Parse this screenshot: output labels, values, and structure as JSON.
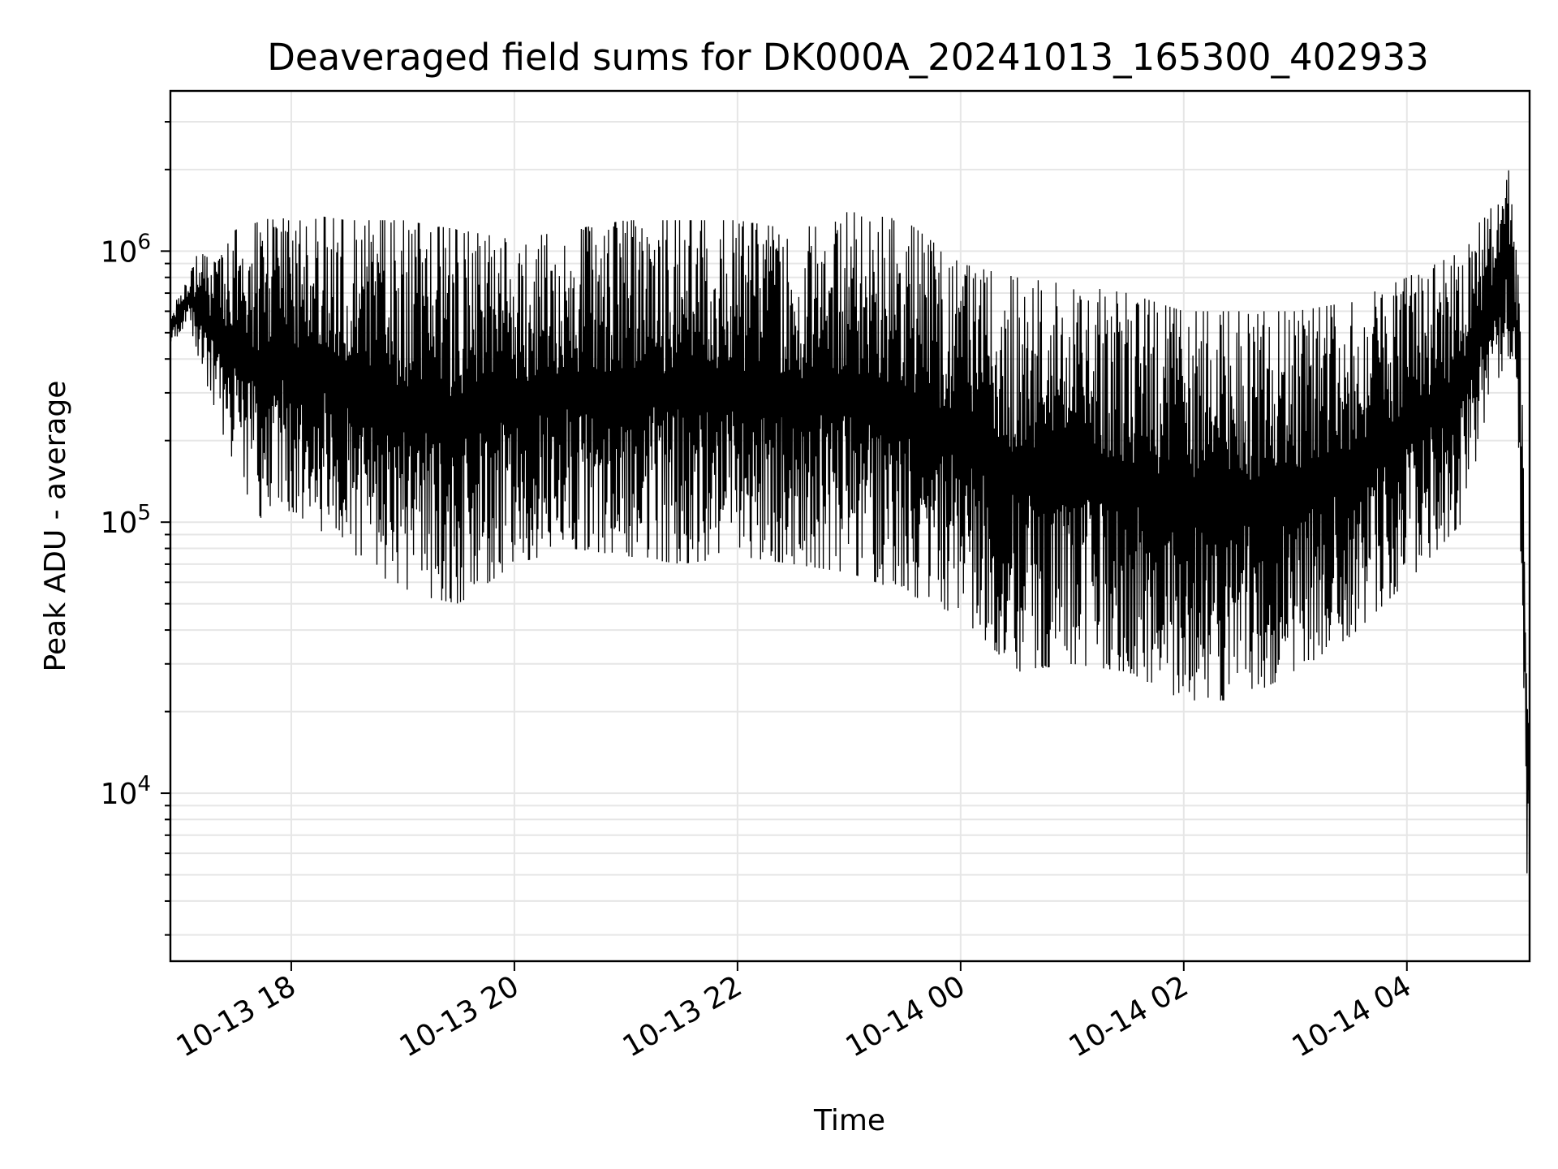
{
  "chart_data": {
    "type": "line",
    "title": "Deaveraged field sums for DK000A_20241013_165300_402933",
    "xlabel": "Time",
    "ylabel": "Peak ADU - average",
    "yscale": "log",
    "grid": true,
    "x_axis_type": "datetime",
    "xlim": [
      "2024-10-13 16:55",
      "2024-10-14 05:06"
    ],
    "ylim": [
      2400,
      3900000
    ],
    "x_ticks": [
      {
        "value": "2024-10-13 18:00",
        "label": "10-13 18"
      },
      {
        "value": "2024-10-13 20:00",
        "label": "10-13 20"
      },
      {
        "value": "2024-10-13 22:00",
        "label": "10-13 22"
      },
      {
        "value": "2024-10-14 00:00",
        "label": "10-14 00"
      },
      {
        "value": "2024-10-14 02:00",
        "label": "10-14 02"
      },
      {
        "value": "2024-10-14 04:00",
        "label": "10-14 04"
      }
    ],
    "y_ticks": [
      {
        "value": 10000,
        "base": "10",
        "exp": "4"
      },
      {
        "value": 100000,
        "base": "10",
        "exp": "5"
      },
      {
        "value": 1000000,
        "base": "10",
        "exp": "6"
      }
    ],
    "line_color": "#000000",
    "series": [
      {
        "x": [
          "2024-10-13 16:55",
          "2024-10-13 17:05",
          "2024-10-13 17:10",
          "2024-10-13 17:20",
          "2024-10-13 17:30",
          "2024-10-13 17:45",
          "2024-10-13 18:00",
          "2024-10-13 18:30",
          "2024-10-13 19:00",
          "2024-10-13 19:30",
          "2024-10-13 20:00",
          "2024-10-13 20:30",
          "2024-10-13 21:00",
          "2024-10-13 21:30",
          "2024-10-13 22:00",
          "2024-10-13 22:30",
          "2024-10-13 23:00",
          "2024-10-13 23:30",
          "2024-10-14 00:00",
          "2024-10-14 00:30",
          "2024-10-14 01:00",
          "2024-10-14 01:30",
          "2024-10-14 02:00",
          "2024-10-14 02:30",
          "2024-10-14 03:00",
          "2024-10-14 03:30",
          "2024-10-14 04:00",
          "2024-10-14 04:30",
          "2024-10-14 04:45",
          "2024-10-14 04:55",
          "2024-10-14 05:00",
          "2024-10-14 05:02",
          "2024-10-14 05:04",
          "2024-10-14 05:05",
          "2024-10-14 05:06"
        ],
        "y_high": [
          600000,
          800000,
          1000000,
          900000,
          1200000,
          1300000,
          1400000,
          1300000,
          1300000,
          1200000,
          1100000,
          1200000,
          1300000,
          1300000,
          1300000,
          1200000,
          1400000,
          1300000,
          900000,
          800000,
          750000,
          700000,
          600000,
          600000,
          600000,
          650000,
          800000,
          1000000,
          1500000,
          2000000,
          800000,
          300000,
          40000,
          30000,
          32000
        ],
        "y_low": [
          450000,
          550000,
          400000,
          250000,
          150000,
          100000,
          110000,
          80000,
          55000,
          50000,
          70000,
          80000,
          75000,
          70000,
          75000,
          70000,
          65000,
          55000,
          45000,
          28000,
          30000,
          28000,
          22000,
          22000,
          28000,
          38000,
          60000,
          100000,
          300000,
          400000,
          200000,
          40000,
          10000,
          3000,
          15000
        ]
      }
    ]
  }
}
